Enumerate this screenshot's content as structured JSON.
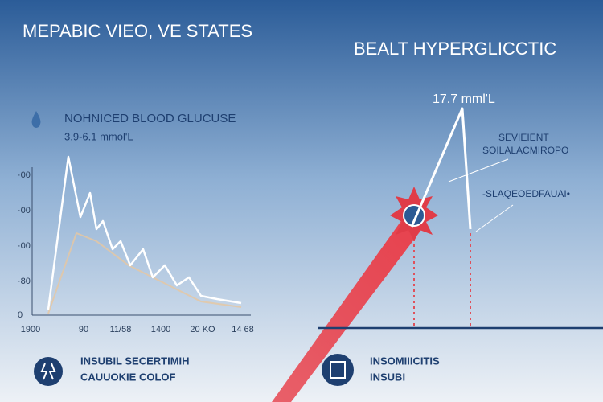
{
  "left_panel": {
    "title": "MEPABIC VIEO, VE STATES",
    "subtitle": "NOHNICED BLOOD GLUCUSE",
    "range": "3.9-6.1 mmol'L",
    "y_labels": [
      "·00",
      "·00",
      "·00",
      "·80",
      "0"
    ],
    "x_labels": [
      "1900",
      "90",
      "11/58",
      "1400",
      "20 KO",
      "14 68"
    ]
  },
  "right_panel": {
    "title": "BEALT HYPERGLICCTIC",
    "peak_label": "17.7 mml'L",
    "annotations": [
      "SEVIEIENT",
      "SOILALACMIROPO",
      "-SLAQEOEDFAUAI•"
    ]
  },
  "footer": {
    "left": {
      "line1": "INSUBIL SECERTIMIH",
      "line2": "CAUUOKIE COLOF"
    },
    "right": {
      "line1": "INSOMIIICITIS",
      "line2": "INSUBI"
    }
  }
}
